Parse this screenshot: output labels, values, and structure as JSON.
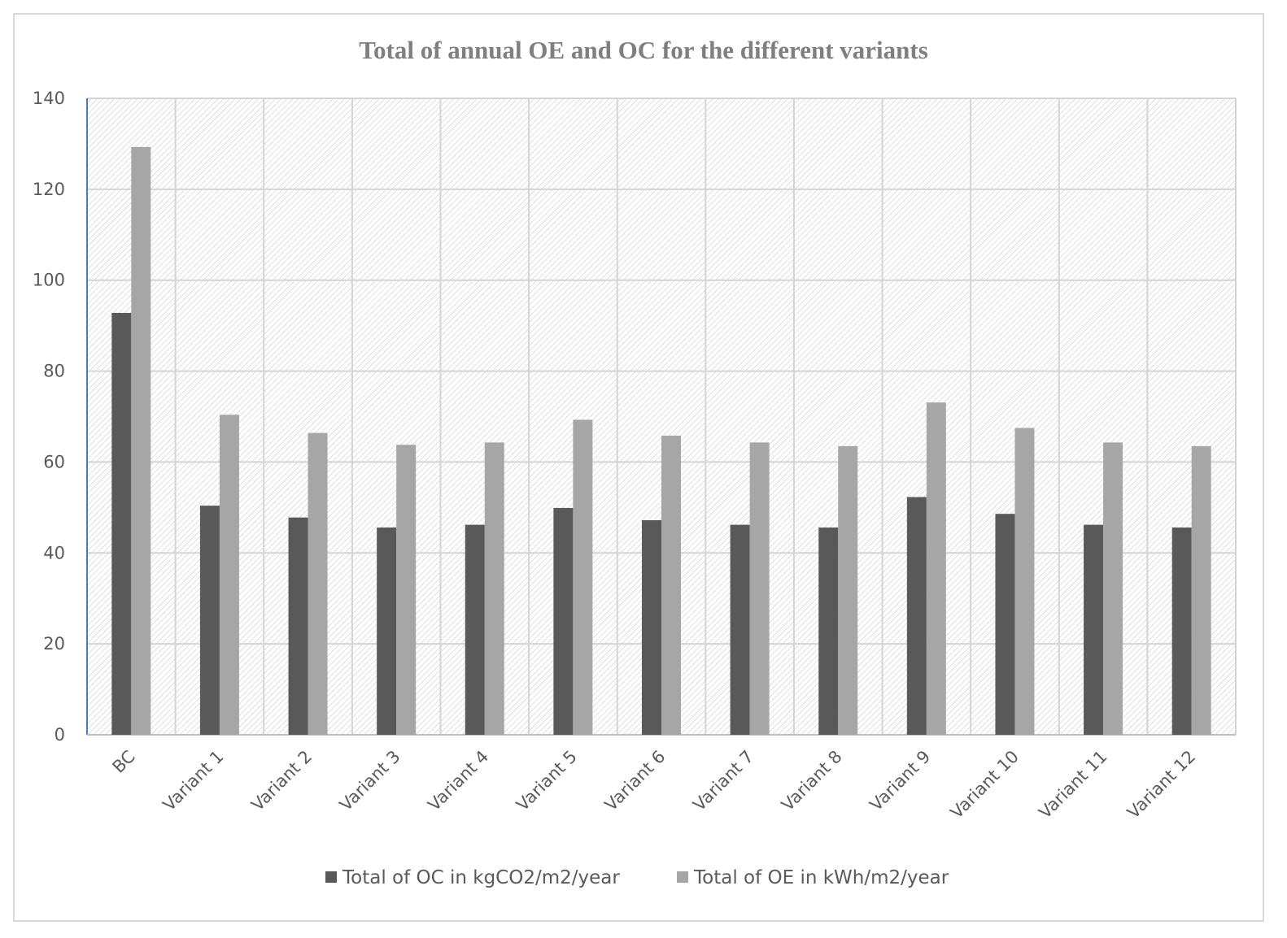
{
  "chart_data": {
    "type": "bar",
    "title": "Total of annual OE and OC for the different variants",
    "xlabel": "",
    "ylabel": "",
    "ylim": [
      0,
      140
    ],
    "yticks": [
      0,
      20,
      40,
      60,
      80,
      100,
      120,
      140
    ],
    "grid": true,
    "legend_position": "bottom",
    "categories": [
      "BC",
      "Variant 1",
      "Variant 2",
      "Variant 3",
      "Variant 4",
      "Variant 5",
      "Variant 6",
      "Variant 7",
      "Variant 8",
      "Variant 9",
      "Variant 10",
      "Variant 11",
      "Variant 12"
    ],
    "series": [
      {
        "name": "Total of OC in kgCO2/m2/year",
        "color": "#595959",
        "values": [
          92.8,
          50.4,
          47.8,
          45.6,
          46.2,
          49.9,
          47.2,
          46.2,
          45.6,
          52.3,
          48.6,
          46.2,
          45.6
        ]
      },
      {
        "name": "Total of OE in kWh/m2/year",
        "color": "#a6a6a6",
        "values": [
          129.3,
          70.4,
          66.4,
          63.8,
          64.3,
          69.3,
          65.8,
          64.3,
          63.5,
          73.1,
          67.5,
          64.3,
          63.5
        ]
      }
    ]
  }
}
